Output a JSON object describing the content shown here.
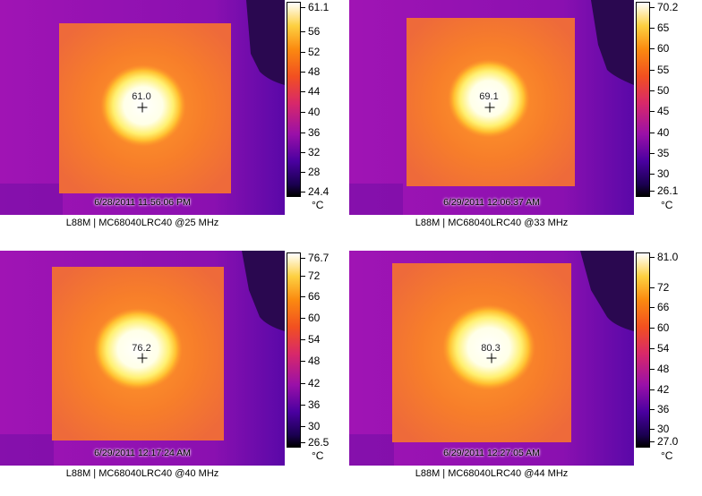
{
  "panels": [
    {
      "spot_temp": "61.0",
      "timestamp": "6/28/2011 11:56:06 PM",
      "caption": "L88M | MC68040LRC40 @25 MHz",
      "scale_max": "61.1",
      "scale_min": "24.4",
      "scale_ticks": [
        "56",
        "52",
        "48",
        "44",
        "40",
        "36",
        "32",
        "28"
      ],
      "unit": "°C"
    },
    {
      "spot_temp": "69.1",
      "timestamp": "6/29/2011 12:06:37 AM",
      "caption": "L88M | MC68040LRC40 @33 MHz",
      "scale_max": "70.2",
      "scale_min": "26.1",
      "scale_ticks": [
        "65",
        "60",
        "55",
        "50",
        "45",
        "40",
        "35",
        "30"
      ],
      "unit": "°C"
    },
    {
      "spot_temp": "76.2",
      "timestamp": "6/29/2011 12:17:24 AM",
      "caption": "L88M | MC68040LRC40 @40 MHz",
      "scale_max": "76.7",
      "scale_min": "26.5",
      "scale_ticks": [
        "72",
        "66",
        "60",
        "54",
        "48",
        "42",
        "36",
        "30"
      ],
      "unit": "°C"
    },
    {
      "spot_temp": "80.3",
      "timestamp": "6/29/2011 12:27:05 AM",
      "caption": "L88M | MC68040LRC40 @44 MHz",
      "scale_max": "81.0",
      "scale_min": "27.0",
      "scale_ticks": [
        "72",
        "66",
        "60",
        "54",
        "48",
        "42",
        "36",
        "30"
      ],
      "unit": "°C"
    }
  ]
}
